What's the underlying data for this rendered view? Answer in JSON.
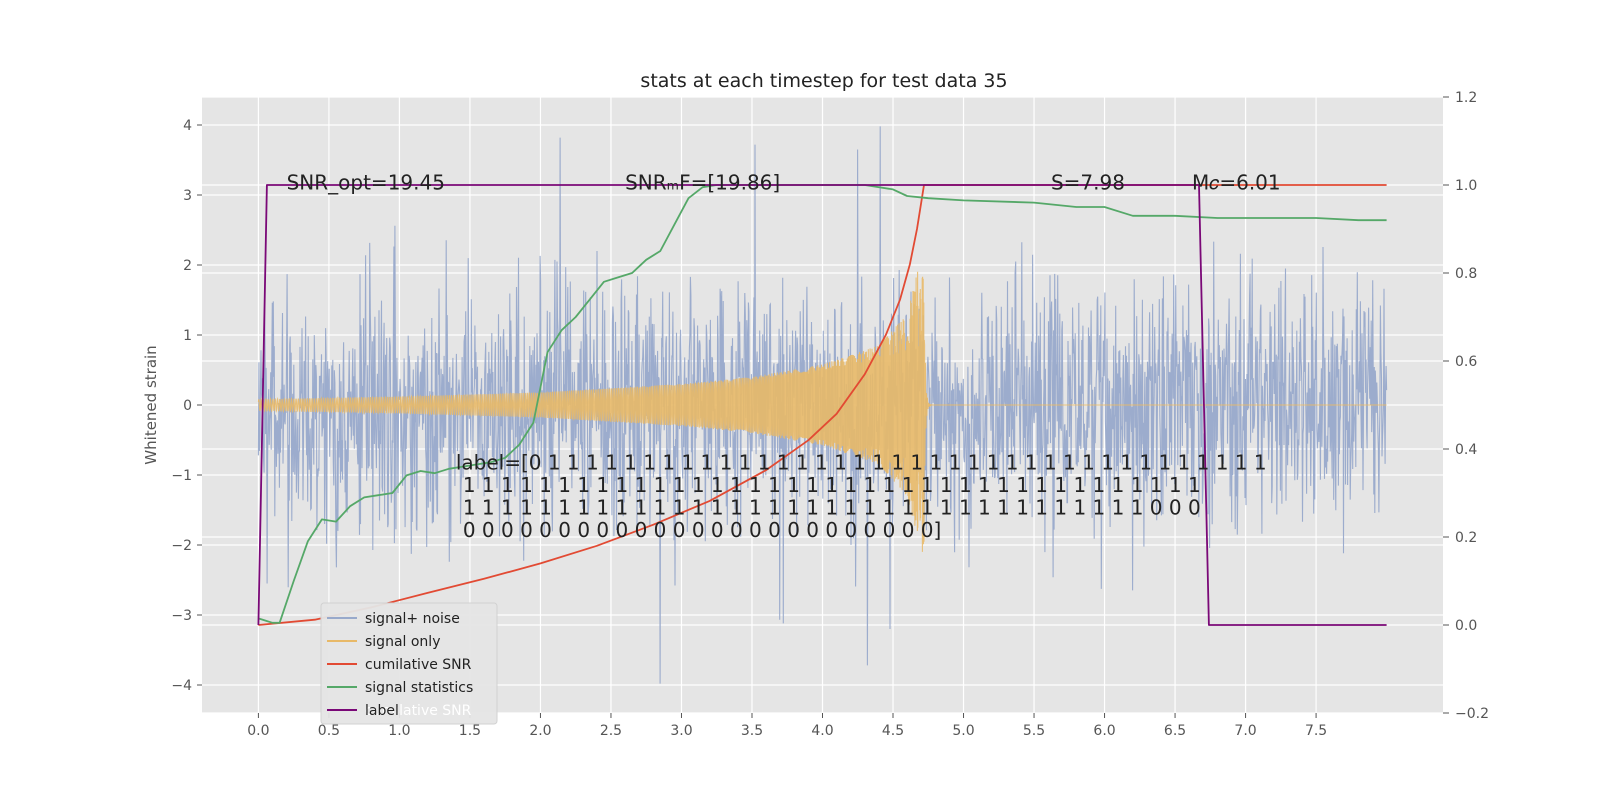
{
  "chart_data": {
    "type": "line",
    "title": "stats at each timestep for test data 35",
    "xlabel": "",
    "ylabel": "Whitened strain",
    "y2label": "",
    "xlim": [
      -0.4,
      8.4
    ],
    "ylim": [
      -4.4,
      4.4
    ],
    "y2lim": [
      -0.2,
      1.2
    ],
    "xticks": [
      0.0,
      0.5,
      1.0,
      1.5,
      2.0,
      2.5,
      3.0,
      3.5,
      4.0,
      4.5,
      5.0,
      5.5,
      6.0,
      6.5,
      7.0,
      7.5
    ],
    "xtick_labels": [
      "0.0",
      "0.5",
      "1.0",
      "1.5",
      "2.0",
      "2.5",
      "3.0",
      "3.5",
      "4.0",
      "4.5",
      "5.0",
      "5.5",
      "6.0",
      "6.5",
      "7.0",
      "7.5"
    ],
    "yticks": [
      -4,
      -3,
      -2,
      -1,
      0,
      1,
      2,
      3,
      4
    ],
    "ytick_labels": [
      "−4",
      "−3",
      "−2",
      "−1",
      "0",
      "1",
      "2",
      "3",
      "4"
    ],
    "y2ticks": [
      -0.2,
      0.0,
      0.2,
      0.4,
      0.6,
      0.8,
      1.0,
      1.2
    ],
    "y2tick_labels": [
      "−0.2",
      "0.0",
      "0.2",
      "0.4",
      "0.6",
      "0.8",
      "1.0",
      "1.2"
    ],
    "grid": true,
    "style": "ggplot",
    "legend_position": "lower-left",
    "noise": {
      "x_range": [
        0.0,
        8.0
      ],
      "typical_amplitude": 1.4,
      "max_peak": 4.0,
      "min_trough": -4.0,
      "notable_spikes": [
        {
          "x": 2.14,
          "y": 3.82
        },
        {
          "x": 3.52,
          "y": 3.72
        },
        {
          "x": 4.41,
          "y": 3.98
        },
        {
          "x": 4.25,
          "y": 3.65
        },
        {
          "x": 2.85,
          "y": -3.98
        },
        {
          "x": 4.32,
          "y": -3.72
        },
        {
          "x": 4.48,
          "y": -3.2
        },
        {
          "x": 3.72,
          "y": -3.12
        }
      ]
    },
    "signal_only": {
      "x_start": 0.0,
      "x_merger": 4.72,
      "x_end": 8.0,
      "amplitude_envelope": [
        {
          "x": 0.0,
          "y": 0.08
        },
        {
          "x": 1.0,
          "y": 0.12
        },
        {
          "x": 2.0,
          "y": 0.18
        },
        {
          "x": 3.0,
          "y": 0.3
        },
        {
          "x": 3.5,
          "y": 0.4
        },
        {
          "x": 4.0,
          "y": 0.58
        },
        {
          "x": 4.4,
          "y": 0.85
        },
        {
          "x": 4.6,
          "y": 1.3
        },
        {
          "x": 4.66,
          "y": 1.8
        },
        {
          "x": 4.7,
          "y": 2.1
        }
      ]
    },
    "series": [
      {
        "name": "signal+ noise",
        "color": "#98a9cb",
        "axis": "left"
      },
      {
        "name": "signal only",
        "color": "#e8b968",
        "axis": "left"
      },
      {
        "name": "cumilative SNR",
        "color": "#e24a33",
        "axis": "right",
        "x": [
          0.0,
          0.4,
          0.8,
          1.2,
          1.6,
          2.0,
          2.4,
          2.8,
          3.2,
          3.6,
          3.9,
          4.1,
          4.3,
          4.45,
          4.55,
          4.62,
          4.67,
          4.7,
          4.72,
          8.0
        ],
        "y": [
          0.0,
          0.012,
          0.04,
          0.073,
          0.105,
          0.14,
          0.18,
          0.228,
          0.282,
          0.352,
          0.42,
          0.48,
          0.57,
          0.66,
          0.74,
          0.82,
          0.9,
          0.96,
          1.0,
          1.0
        ]
      },
      {
        "name": "signal statistics",
        "color": "#55a868",
        "axis": "right",
        "x": [
          0.0,
          0.05,
          0.1,
          0.15,
          0.25,
          0.35,
          0.45,
          0.55,
          0.65,
          0.75,
          0.85,
          0.95,
          1.05,
          1.15,
          1.25,
          1.35,
          1.45,
          1.55,
          1.65,
          1.75,
          1.85,
          1.95,
          2.05,
          2.15,
          2.25,
          2.35,
          2.45,
          2.55,
          2.65,
          2.75,
          2.85,
          2.95,
          3.05,
          3.15,
          3.25,
          3.5,
          4.0,
          4.3,
          4.5,
          4.6,
          4.75,
          5.0,
          5.5,
          5.8,
          6.0,
          6.2,
          6.5,
          6.8,
          7.0,
          7.5,
          7.8,
          8.0
        ],
        "y": [
          0.015,
          0.01,
          0.005,
          0.005,
          0.1,
          0.19,
          0.24,
          0.235,
          0.27,
          0.29,
          0.295,
          0.3,
          0.34,
          0.35,
          0.345,
          0.355,
          0.36,
          0.365,
          0.37,
          0.38,
          0.41,
          0.46,
          0.62,
          0.67,
          0.7,
          0.74,
          0.78,
          0.79,
          0.8,
          0.83,
          0.85,
          0.91,
          0.97,
          0.995,
          1.0,
          1.0,
          1.0,
          1.0,
          0.99,
          0.975,
          0.97,
          0.965,
          0.96,
          0.95,
          0.95,
          0.93,
          0.93,
          0.925,
          0.925,
          0.925,
          0.92,
          0.92
        ]
      },
      {
        "name": "label",
        "color": "#7a0877",
        "axis": "right",
        "x": [
          0.0,
          0.06,
          6.67,
          6.74,
          8.0
        ],
        "y": [
          0.0,
          1.0,
          1.0,
          0.0,
          0.0
        ]
      }
    ],
    "annotations": [
      {
        "text": "SNR_opt=19.45",
        "x": 0.2,
        "y": 3.15
      },
      {
        "text": "SNRₘF=[19.86]",
        "x": 2.6,
        "y": 3.15
      },
      {
        "text": "S=7.98",
        "x": 5.62,
        "y": 3.15
      },
      {
        "text": "M𝑐=6.01",
        "x": 6.62,
        "y": 3.15
      }
    ],
    "label_text_lines": [
      "label=[0 1 1 1 1 1 1 1 1 1 1 1 1 1 1 1 1 1 1 1 1 1 1 1 1 1 1 1 1 1 1 1 1 1 1 1 1 1 1",
      "1 1 1 1 1 1 1 1 1 1 1 1 1 1 1 1 1 1 1 1 1 1 1 1 1 1 1 1 1 1 1 1 1 1 1 1 1 1 1",
      "1 1 1 1 1 1 1 1 1 1 1 1 1 1 1 1 1 1 1 1 1 1 1 1 1 1 1 1 1 1 1 1 1 1 1 1 0 0 0",
      "0 0 0 0 0 0 0 0 0 0 0 0 0 0 0 0 0 0 0 0 0 0 0 0 0]"
    ],
    "legend": [
      "signal+ noise",
      "signal only",
      "cumilative SNR",
      "signal statistics",
      "label"
    ],
    "legend_ghost_text": "cumilative SNR"
  }
}
